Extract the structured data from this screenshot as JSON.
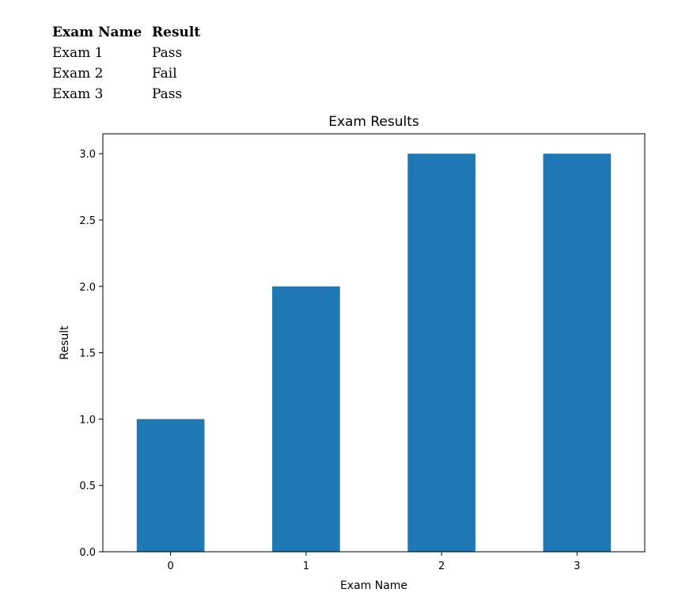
{
  "table": {
    "headers": [
      "Exam Name",
      "Result"
    ],
    "rows": [
      [
        "Exam 1",
        "Pass"
      ],
      [
        "Exam 2",
        "Fail"
      ],
      [
        "Exam 3",
        "Pass"
      ]
    ]
  },
  "colors": {
    "bar": "#1f77b4"
  },
  "chart_data": {
    "type": "bar",
    "title": "Exam Results",
    "xlabel": "Exam Name",
    "ylabel": "Result",
    "categories": [
      "0",
      "1",
      "2",
      "3"
    ],
    "values": [
      1.0,
      2.0,
      3.0,
      3.0
    ],
    "ylim": [
      0,
      3.15
    ],
    "yticks": [
      "0.0",
      "0.5",
      "1.0",
      "1.5",
      "2.0",
      "2.5",
      "3.0"
    ],
    "grid": false,
    "legend": false
  }
}
